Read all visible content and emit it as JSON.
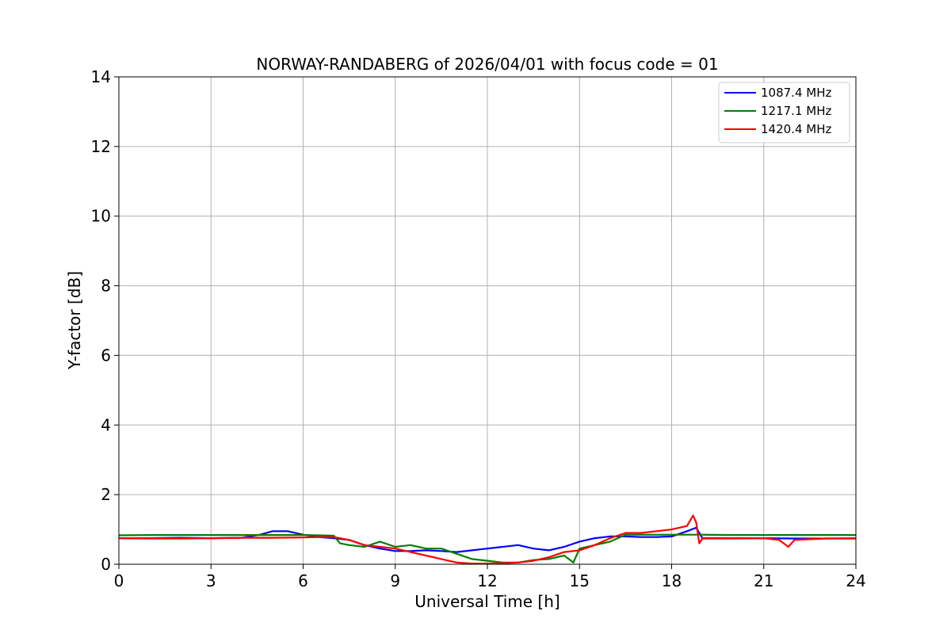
{
  "chart_data": {
    "type": "line",
    "title": "NORWAY-RANDABERG of 2026/04/01 with focus code = 01",
    "xlabel": "Universal Time [h]",
    "ylabel": "Y-factor [dB]",
    "xlim": [
      0,
      24
    ],
    "ylim": [
      0,
      14
    ],
    "xticks": [
      0,
      3,
      6,
      9,
      12,
      15,
      18,
      21,
      24
    ],
    "yticks": [
      0,
      2,
      4,
      6,
      8,
      10,
      12,
      14
    ],
    "grid": true,
    "legend_position": "top-right",
    "series": [
      {
        "name": "1087.4 MHz",
        "color": "#0000ff",
        "x": [
          0,
          1,
          2,
          3,
          4,
          4.6,
          5,
          5.5,
          6,
          6.5,
          7,
          7.5,
          8,
          8.5,
          9,
          9.5,
          10,
          10.5,
          11,
          11.5,
          12,
          12.5,
          13,
          13.5,
          14,
          14.5,
          15,
          15.5,
          16,
          16.5,
          17,
          17.5,
          18,
          18.5,
          18.8,
          19,
          20,
          21,
          22,
          23,
          24
        ],
        "y": [
          0.75,
          0.75,
          0.76,
          0.75,
          0.76,
          0.85,
          0.95,
          0.95,
          0.85,
          0.78,
          0.75,
          0.7,
          0.55,
          0.45,
          0.38,
          0.38,
          0.4,
          0.38,
          0.35,
          0.4,
          0.45,
          0.5,
          0.55,
          0.45,
          0.4,
          0.5,
          0.65,
          0.75,
          0.8,
          0.8,
          0.78,
          0.78,
          0.8,
          0.95,
          1.05,
          0.75,
          0.75,
          0.75,
          0.74,
          0.74,
          0.74
        ]
      },
      {
        "name": "1217.1 MHz",
        "color": "#008000",
        "x": [
          0,
          1,
          2,
          3,
          4,
          5,
          6,
          6.5,
          7,
          7.2,
          7.5,
          8,
          8.5,
          9,
          9.5,
          10,
          10.5,
          11,
          11.5,
          12,
          12.5,
          13,
          13.5,
          14,
          14.5,
          14.8,
          15,
          15.5,
          16,
          16.5,
          17,
          17.5,
          18,
          18.5,
          18.8,
          19,
          20,
          21,
          22,
          23,
          24
        ],
        "y": [
          0.83,
          0.84,
          0.84,
          0.84,
          0.84,
          0.84,
          0.84,
          0.83,
          0.82,
          0.6,
          0.55,
          0.5,
          0.65,
          0.5,
          0.55,
          0.45,
          0.45,
          0.3,
          0.15,
          0.1,
          0.05,
          0.05,
          0.12,
          0.15,
          0.25,
          0.05,
          0.45,
          0.55,
          0.65,
          0.85,
          0.85,
          0.85,
          0.85,
          0.85,
          0.85,
          0.85,
          0.84,
          0.84,
          0.84,
          0.84,
          0.84
        ]
      },
      {
        "name": "1420.4 MHz",
        "color": "#ff0000",
        "x": [
          0,
          1,
          2,
          3,
          4,
          5,
          6,
          6.5,
          7,
          7.5,
          8,
          8.5,
          9,
          9.5,
          10,
          10.5,
          11,
          11.5,
          12,
          12.5,
          13,
          13.5,
          14,
          14.5,
          15,
          15.5,
          16,
          16.5,
          17,
          17.5,
          18,
          18.5,
          18.7,
          18.8,
          18.9,
          19,
          20,
          21,
          21.5,
          21.8,
          22,
          22.5,
          23,
          24
        ],
        "y": [
          0.75,
          0.74,
          0.74,
          0.75,
          0.76,
          0.76,
          0.77,
          0.78,
          0.78,
          0.7,
          0.55,
          0.5,
          0.45,
          0.35,
          0.25,
          0.15,
          0.05,
          0.02,
          0.02,
          0.03,
          0.05,
          0.1,
          0.2,
          0.35,
          0.4,
          0.55,
          0.75,
          0.9,
          0.9,
          0.95,
          1.0,
          1.1,
          1.4,
          1.2,
          0.6,
          0.74,
          0.74,
          0.75,
          0.7,
          0.5,
          0.7,
          0.72,
          0.74,
          0.75
        ]
      }
    ]
  }
}
